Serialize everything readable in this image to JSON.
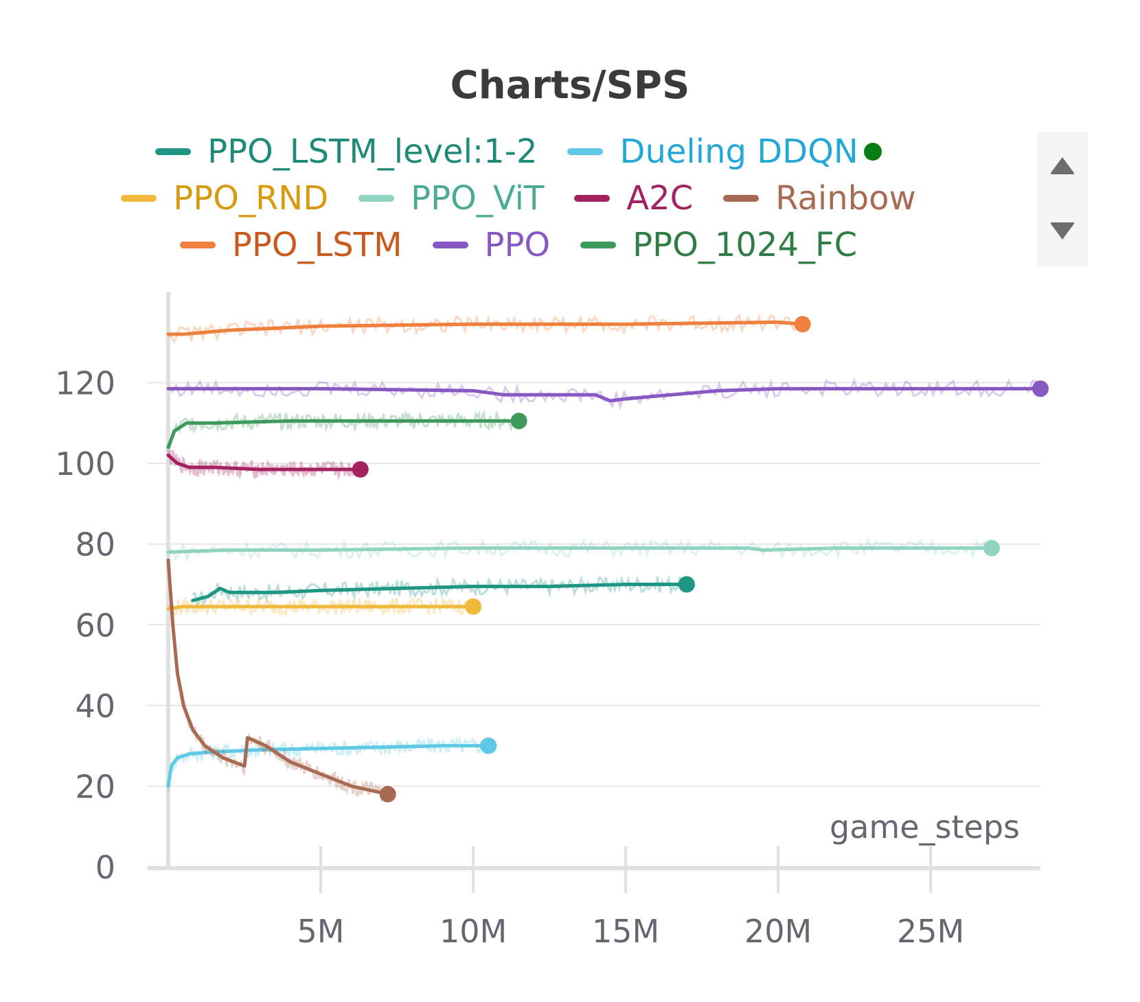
{
  "chart_data": {
    "type": "line",
    "title": "Charts/SPS",
    "xlabel": "game_steps",
    "ylabel": "",
    "xlim": [
      0,
      28600000
    ],
    "ylim": [
      0,
      140
    ],
    "x_ticks": [
      5000000,
      10000000,
      15000000,
      20000000,
      25000000
    ],
    "x_tick_labels": [
      "5M",
      "10M",
      "15M",
      "20M",
      "25M"
    ],
    "y_ticks": [
      0,
      20,
      40,
      60,
      80,
      100,
      120
    ],
    "y_tick_labels": [
      "0",
      "20",
      "40",
      "60",
      "80",
      "100",
      "120"
    ],
    "grid": true,
    "legend_position": "top",
    "series": [
      {
        "name": "PPO_LSTM_level:1-2",
        "color": "#1e9683",
        "text_color": "#1e8a78",
        "x": [
          800000,
          1300000,
          1700000,
          2000000,
          2600000,
          3500000,
          5000000,
          7500000,
          10000000,
          12500000,
          15000000,
          17000000
        ],
        "y": [
          66,
          67,
          69,
          68,
          68,
          68,
          68.5,
          69,
          69.5,
          69.5,
          70,
          70
        ]
      },
      {
        "name": "Dueling DDQN",
        "color": "#5fc9e5",
        "text_color": "#23a8d8",
        "x": [
          0,
          100000,
          300000,
          700000,
          1500000,
          3000000,
          6000000,
          9000000,
          10500000
        ],
        "y": [
          20,
          25,
          27,
          28,
          28.5,
          29,
          29.5,
          30,
          30
        ]
      },
      {
        "name": "PPO_RND",
        "color": "#f0b93b",
        "text_color": "#d89a0e",
        "x": [
          0,
          500000,
          2000000,
          5000000,
          8000000,
          10000000
        ],
        "y": [
          64,
          64.5,
          64.5,
          64.5,
          64.5,
          64.5
        ]
      },
      {
        "name": "PPO_ViT",
        "color": "#8fd3c0",
        "text_color": "#4aaa93",
        "x": [
          0,
          2000000,
          5000000,
          10000000,
          15000000,
          19000000,
          19500000,
          22000000,
          25000000,
          27000000
        ],
        "y": [
          78,
          78.5,
          78.5,
          79,
          79,
          79,
          78.5,
          79,
          79,
          79
        ]
      },
      {
        "name": "A2C",
        "color": "#a3225f",
        "text_color": "#a3225f",
        "x": [
          0,
          300000,
          700000,
          1500000,
          3000000,
          5000000,
          6300000
        ],
        "y": [
          102,
          100,
          99,
          99,
          98.5,
          98.5,
          98.5
        ]
      },
      {
        "name": "Rainbow",
        "color": "#a86a53",
        "text_color": "#a86a53",
        "x": [
          0,
          150000,
          300000,
          500000,
          800000,
          1200000,
          1800000,
          2500000,
          2600000,
          3200000,
          4000000,
          5000000,
          6000000,
          7200000
        ],
        "y": [
          76,
          60,
          48,
          40,
          34,
          30,
          27,
          25,
          32,
          30,
          26,
          23,
          20,
          18
        ]
      },
      {
        "name": "PPO_LSTM",
        "color": "#ef7f3c",
        "text_color": "#c85a1e",
        "x": [
          0,
          500000,
          2000000,
          5000000,
          10000000,
          15000000,
          20000000,
          20800000
        ],
        "y": [
          132,
          132,
          133,
          134,
          134.5,
          134.5,
          135,
          134.5
        ]
      },
      {
        "name": "PPO",
        "color": "#8757c2",
        "text_color": "#8757c2",
        "x": [
          0,
          2000000,
          5000000,
          10000000,
          11000000,
          13000000,
          14000000,
          14500000,
          15000000,
          18000000,
          20000000,
          25000000,
          28600000
        ],
        "y": [
          118.5,
          118.5,
          118.5,
          118,
          117,
          117,
          117,
          115.5,
          116,
          118,
          118.5,
          118.5,
          118.5
        ]
      },
      {
        "name": "PPO_1024_FC",
        "color": "#3e9a5a",
        "text_color": "#2f7d46",
        "x": [
          0,
          200000,
          600000,
          1500000,
          4000000,
          8000000,
          11500000
        ],
        "y": [
          104,
          108,
          110,
          110,
          110.5,
          110.5,
          110.5
        ]
      }
    ]
  },
  "legend": {
    "rows": [
      [
        0,
        1
      ],
      [
        2,
        3,
        4,
        5
      ],
      [
        6,
        7,
        8
      ]
    ],
    "status_dot_color": "#0a7d14",
    "scroll_up_icon": "triangle-up",
    "scroll_down_icon": "triangle-down"
  }
}
